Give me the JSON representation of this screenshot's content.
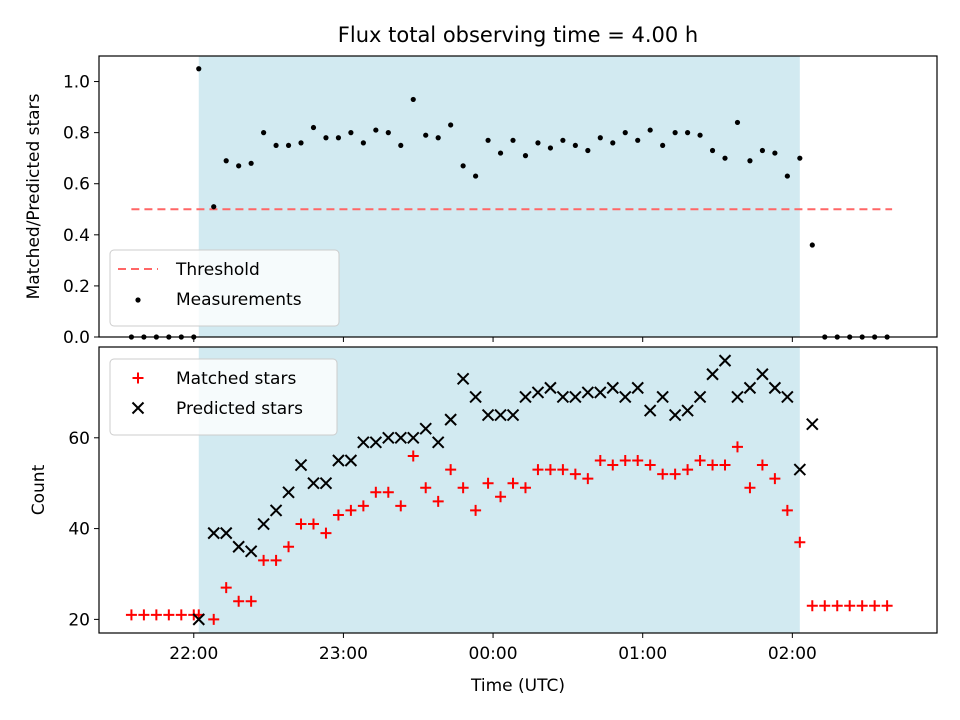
{
  "title": "Flux total observing time = 4.00 h",
  "colors": {
    "shade": "#add8e6",
    "threshold": "#ff6666",
    "measurement": "#000000",
    "matched": "#ff0000",
    "predicted": "#000000"
  },
  "chart_data": [
    {
      "type": "scatter",
      "ylabel": "Matched/Predicted stars",
      "xlim": [
        "21:22",
        "02:58"
      ],
      "ylim": [
        0,
        1.1
      ],
      "yticks": [
        0.0,
        0.2,
        0.4,
        0.6,
        0.8,
        1.0
      ],
      "ytick_labels": [
        "0.0",
        "0.2",
        "0.4",
        "0.6",
        "0.8",
        "1.0"
      ],
      "shaded_span": [
        "22:02",
        "02:03"
      ],
      "legend_loc": "lower left",
      "threshold": {
        "name": "Threshold",
        "y": 0.5,
        "x_range": [
          "21:35",
          "02:40"
        ]
      },
      "series": [
        {
          "name": "Measurements",
          "marker": "dot",
          "x": [
            "21:35",
            "21:40",
            "21:45",
            "21:50",
            "21:55",
            "22:00",
            "22:02",
            "22:08",
            "22:13",
            "22:18",
            "22:23",
            "22:28",
            "22:33",
            "22:38",
            "22:43",
            "22:48",
            "22:53",
            "22:58",
            "23:03",
            "23:08",
            "23:13",
            "23:18",
            "23:23",
            "23:28",
            "23:33",
            "23:38",
            "23:43",
            "23:48",
            "23:53",
            "23:58",
            "00:03",
            "00:08",
            "00:13",
            "00:18",
            "00:23",
            "00:28",
            "00:33",
            "00:38",
            "00:43",
            "00:48",
            "00:53",
            "00:58",
            "01:03",
            "01:08",
            "01:13",
            "01:18",
            "01:23",
            "01:28",
            "01:33",
            "01:38",
            "01:43",
            "01:48",
            "01:53",
            "01:58",
            "02:03",
            "02:08",
            "02:13",
            "02:18",
            "02:23",
            "02:28",
            "02:33",
            "02:38"
          ],
          "y": [
            0.0,
            0.0,
            0.0,
            0.0,
            0.0,
            0.0,
            1.05,
            0.51,
            0.69,
            0.67,
            0.68,
            0.8,
            0.75,
            0.75,
            0.76,
            0.82,
            0.78,
            0.78,
            0.8,
            0.76,
            0.81,
            0.8,
            0.75,
            0.93,
            0.79,
            0.78,
            0.83,
            0.67,
            0.63,
            0.77,
            0.72,
            0.77,
            0.71,
            0.76,
            0.74,
            0.77,
            0.75,
            0.73,
            0.78,
            0.76,
            0.8,
            0.77,
            0.81,
            0.75,
            0.8,
            0.8,
            0.79,
            0.73,
            0.7,
            0.84,
            0.69,
            0.73,
            0.72,
            0.63,
            0.7,
            0.36,
            0.0,
            0.0,
            0.0,
            0.0,
            0.0,
            0.0
          ]
        }
      ]
    },
    {
      "type": "scatter",
      "xlabel": "Time (UTC)",
      "ylabel": "Count",
      "xlim": [
        "21:22",
        "02:58"
      ],
      "ylim": [
        17,
        80
      ],
      "yticks": [
        20,
        40,
        60
      ],
      "ytick_labels": [
        "20",
        "40",
        "60"
      ],
      "xticks": [
        "22:00",
        "23:00",
        "00:00",
        "01:00",
        "02:00"
      ],
      "shaded_span": [
        "22:02",
        "02:03"
      ],
      "legend_loc": "upper left",
      "series": [
        {
          "name": "Matched stars",
          "marker": "plus",
          "x": [
            "21:35",
            "21:40",
            "21:45",
            "21:50",
            "21:55",
            "22:00",
            "22:02",
            "22:08",
            "22:13",
            "22:18",
            "22:23",
            "22:28",
            "22:33",
            "22:38",
            "22:43",
            "22:48",
            "22:53",
            "22:58",
            "23:03",
            "23:08",
            "23:13",
            "23:18",
            "23:23",
            "23:28",
            "23:33",
            "23:38",
            "23:43",
            "23:48",
            "23:53",
            "23:58",
            "00:03",
            "00:08",
            "00:13",
            "00:18",
            "00:23",
            "00:28",
            "00:33",
            "00:38",
            "00:43",
            "00:48",
            "00:53",
            "00:58",
            "01:03",
            "01:08",
            "01:13",
            "01:18",
            "01:23",
            "01:28",
            "01:33",
            "01:38",
            "01:43",
            "01:48",
            "01:53",
            "01:58",
            "02:03",
            "02:08",
            "02:13",
            "02:18",
            "02:23",
            "02:28",
            "02:33",
            "02:38"
          ],
          "y": [
            21,
            21,
            21,
            21,
            21,
            21,
            21,
            20,
            27,
            24,
            24,
            33,
            33,
            36,
            41,
            41,
            39,
            43,
            44,
            45,
            48,
            48,
            45,
            56,
            49,
            46,
            53,
            49,
            44,
            50,
            47,
            50,
            49,
            53,
            53,
            53,
            52,
            51,
            55,
            54,
            55,
            55,
            54,
            52,
            52,
            53,
            55,
            54,
            54,
            58,
            49,
            54,
            51,
            44,
            37,
            23,
            23,
            23,
            23,
            23,
            23,
            23
          ]
        },
        {
          "name": "Predicted stars",
          "marker": "x",
          "x": [
            "22:02",
            "22:08",
            "22:13",
            "22:18",
            "22:23",
            "22:28",
            "22:33",
            "22:38",
            "22:43",
            "22:48",
            "22:53",
            "22:58",
            "23:03",
            "23:08",
            "23:13",
            "23:18",
            "23:23",
            "23:28",
            "23:33",
            "23:38",
            "23:43",
            "23:48",
            "23:53",
            "23:58",
            "00:03",
            "00:08",
            "00:13",
            "00:18",
            "00:23",
            "00:28",
            "00:33",
            "00:38",
            "00:43",
            "00:48",
            "00:53",
            "00:58",
            "01:03",
            "01:08",
            "01:13",
            "01:18",
            "01:23",
            "01:28",
            "01:33",
            "01:38",
            "01:43",
            "01:48",
            "01:53",
            "01:58",
            "02:03",
            "02:08"
          ],
          "y": [
            20,
            39,
            39,
            36,
            35,
            41,
            44,
            48,
            54,
            50,
            50,
            55,
            55,
            59,
            59,
            60,
            60,
            60,
            62,
            59,
            64,
            73,
            69,
            65,
            65,
            65,
            69,
            70,
            71,
            69,
            69,
            70,
            70,
            71,
            69,
            71,
            66,
            69,
            65,
            66,
            69,
            74,
            77,
            69,
            71,
            74,
            71,
            69,
            53,
            63
          ]
        }
      ]
    }
  ]
}
